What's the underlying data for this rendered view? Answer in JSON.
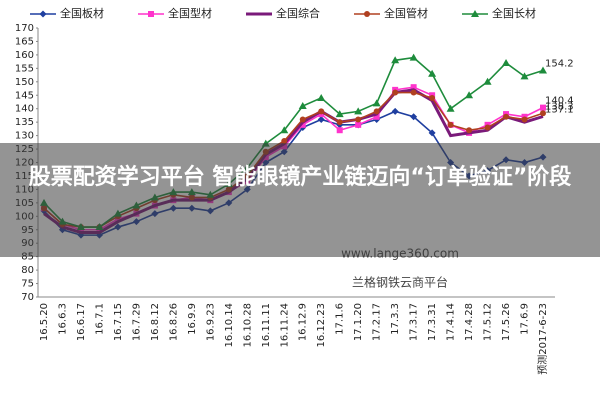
{
  "chart_data": {
    "type": "line",
    "overlay_title": "股票配资学习平台 智能眼镜产业链迈向“订单验证”阶段",
    "watermarks": [
      "www.lange360.com",
      "兰格钢铁云商平台"
    ],
    "categories": [
      "16.5.20",
      "16.6.3",
      "16.6.17",
      "16.7.1",
      "16.7.15",
      "16.7.29",
      "16.8.12",
      "16.8.26",
      "16.9.9",
      "16.9.23",
      "16.10.14",
      "16.10.28",
      "16.11.11",
      "16.11.24",
      "16.12.9",
      "16.12.23",
      "17.1.6",
      "17.1.20",
      "17.2.17",
      "17.3.3",
      "17.3.17",
      "17.3.31",
      "17.4.14",
      "17.4.28",
      "17.5.12",
      "17.5.26",
      "17.6.9",
      "预测2017-6-23"
    ],
    "ylim": [
      70,
      170
    ],
    "yticks": [
      70,
      75,
      80,
      85,
      90,
      95,
      100,
      105,
      110,
      115,
      120,
      125,
      130,
      135,
      140,
      145,
      150,
      155,
      160,
      165,
      170
    ],
    "grid": false,
    "series": [
      {
        "name": "全国板材",
        "color": "#1f3fa0",
        "marker": "diamond",
        "values": [
          102,
          95,
          93,
          93,
          96,
          98,
          101,
          103,
          103,
          102,
          105,
          110,
          120,
          124,
          133,
          136,
          134,
          134,
          136,
          139,
          137,
          131,
          120,
          115,
          117,
          121,
          120,
          122
        ]
      },
      {
        "name": "全国型材",
        "color": "#ff33cc",
        "marker": "square",
        "values": [
          103,
          97,
          95,
          95,
          99,
          101,
          104,
          106,
          107,
          106,
          109,
          113,
          122,
          126,
          134,
          138,
          132,
          134,
          137,
          147,
          148,
          145,
          134,
          131,
          134,
          138,
          137,
          140.4
        ],
        "value_labels": [
          null,
          null,
          null,
          null,
          null,
          null,
          null,
          null,
          null,
          null,
          null,
          null,
          null,
          null,
          null,
          null,
          null,
          null,
          null,
          null,
          null,
          null,
          null,
          null,
          null,
          null,
          null,
          "140.4"
        ]
      },
      {
        "name": "全国综合",
        "color": "#7a1a7a",
        "marker": "none",
        "values": [
          101,
          96,
          94,
          94,
          98,
          101,
          104,
          106,
          106,
          106,
          109,
          114,
          123,
          127,
          135,
          139,
          135,
          136,
          138,
          146,
          147,
          143,
          130,
          131,
          132,
          137,
          135,
          137.1
        ],
        "value_labels": [
          null,
          null,
          null,
          null,
          null,
          null,
          null,
          null,
          null,
          null,
          null,
          null,
          null,
          null,
          null,
          null,
          null,
          null,
          null,
          null,
          null,
          null,
          null,
          null,
          null,
          null,
          null,
          "137.1"
        ]
      },
      {
        "name": "全国管材",
        "color": "#b04020",
        "marker": "circle",
        "values": [
          103,
          97,
          96,
          96,
          100,
          103,
          106,
          108,
          107,
          107,
          110,
          115,
          124,
          128,
          136,
          139,
          135,
          136,
          139,
          146,
          146,
          144,
          134,
          132,
          133,
          137,
          136,
          138.3
        ],
        "value_labels": [
          null,
          null,
          null,
          null,
          null,
          null,
          null,
          null,
          null,
          null,
          null,
          null,
          null,
          null,
          null,
          null,
          null,
          null,
          null,
          null,
          null,
          null,
          null,
          null,
          null,
          null,
          null,
          "138.3"
        ]
      },
      {
        "name": "全国长材",
        "color": "#1e8c3c",
        "marker": "triangle",
        "values": [
          105,
          98,
          96,
          96,
          101,
          104,
          107,
          109,
          109,
          108,
          112,
          118,
          127,
          132,
          141,
          144,
          138,
          139,
          142,
          158,
          159,
          153,
          140,
          145,
          150,
          157,
          152,
          154.2
        ],
        "value_labels": [
          null,
          null,
          null,
          null,
          null,
          null,
          null,
          null,
          null,
          null,
          null,
          null,
          null,
          null,
          null,
          null,
          null,
          null,
          null,
          null,
          null,
          null,
          null,
          null,
          null,
          null,
          null,
          "154.2"
        ]
      }
    ]
  }
}
